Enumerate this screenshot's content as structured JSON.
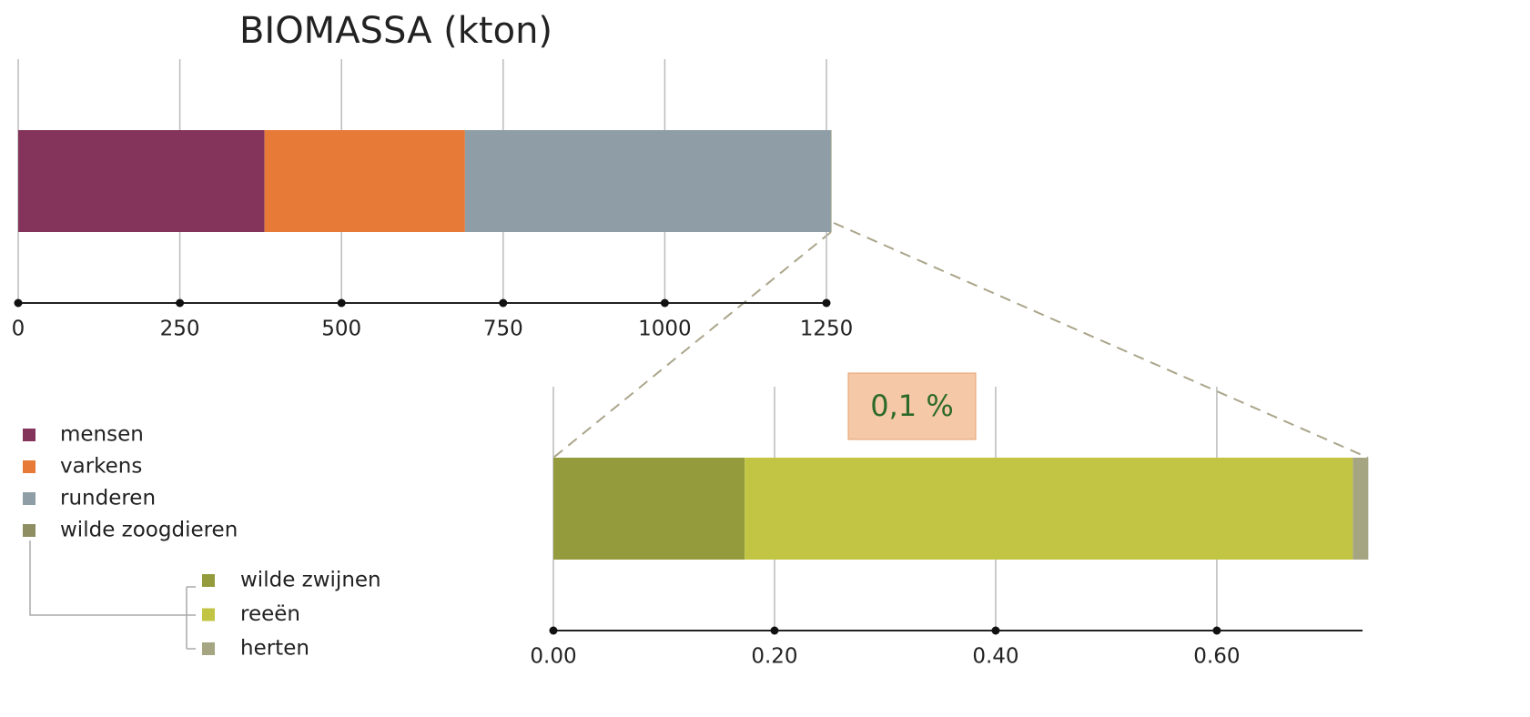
{
  "chart_data": [
    {
      "type": "stacked-bar",
      "title": "BIOMASSA (kton)",
      "series": [
        {
          "name": "mensen",
          "color": "#84345a",
          "values": [
            381
          ]
        },
        {
          "name": "varkens",
          "color": "#e77a36",
          "values": [
            310
          ]
        },
        {
          "name": "runderen",
          "color": "#8f9ea6",
          "values": [
            566
          ]
        },
        {
          "name": "wilde zoogdieren",
          "color": "#8f8d62",
          "values": [
            0.74
          ]
        }
      ],
      "xlim": [
        0,
        1250
      ],
      "xticks": [
        0,
        250,
        500,
        750,
        1000,
        1250
      ],
      "grid": true
    },
    {
      "type": "stacked-bar",
      "annotation": "0,1 %",
      "series": [
        {
          "name": "wilde zwijnen",
          "color": "#939b3c",
          "values": [
            0.173
          ]
        },
        {
          "name": "reeën",
          "color": "#c2c544",
          "values": [
            0.55
          ]
        },
        {
          "name": "herten",
          "color": "#a6a581",
          "values": [
            0.014
          ]
        }
      ],
      "xlim": [
        0,
        0.74
      ],
      "xticks": [
        {
          "value": 0,
          "label": "0.00"
        },
        {
          "value": 0.2,
          "label": "0.20"
        },
        {
          "value": 0.4,
          "label": "0.40"
        },
        {
          "value": 0.6,
          "label": "0.60"
        }
      ],
      "grid": true
    }
  ]
}
